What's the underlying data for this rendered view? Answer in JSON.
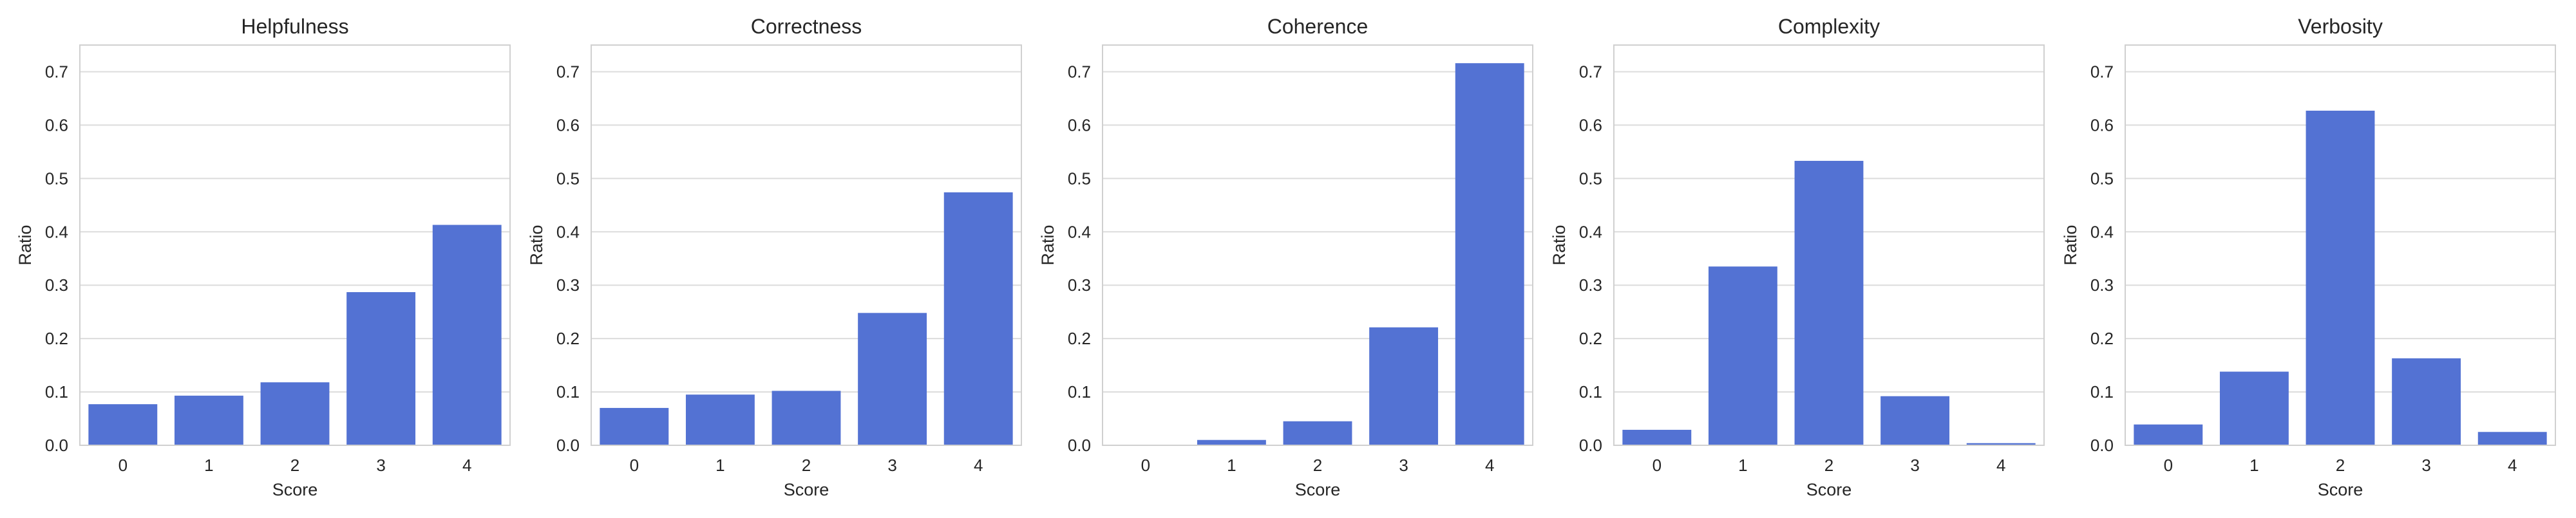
{
  "chart_data": [
    {
      "type": "bar",
      "title": "Helpfulness",
      "xlabel": "Score",
      "ylabel": "Ratio",
      "categories": [
        "0",
        "1",
        "2",
        "3",
        "4"
      ],
      "values": [
        0.077,
        0.093,
        0.118,
        0.287,
        0.413
      ],
      "ylim": [
        0,
        0.75
      ],
      "yticks": [
        "0.0",
        "0.1",
        "0.2",
        "0.3",
        "0.4",
        "0.5",
        "0.6",
        "0.7"
      ],
      "grid": "horizontal",
      "bar_color": "#5372d3"
    },
    {
      "type": "bar",
      "title": "Correctness",
      "xlabel": "Score",
      "ylabel": "Ratio",
      "categories": [
        "0",
        "1",
        "2",
        "3",
        "4"
      ],
      "values": [
        0.07,
        0.095,
        0.102,
        0.248,
        0.474
      ],
      "ylim": [
        0,
        0.75
      ],
      "yticks": [
        "0.0",
        "0.1",
        "0.2",
        "0.3",
        "0.4",
        "0.5",
        "0.6",
        "0.7"
      ],
      "grid": "horizontal",
      "bar_color": "#5372d3"
    },
    {
      "type": "bar",
      "title": "Coherence",
      "xlabel": "Score",
      "ylabel": "Ratio",
      "categories": [
        "0",
        "1",
        "2",
        "3",
        "4"
      ],
      "values": [
        0.001,
        0.01,
        0.045,
        0.221,
        0.716
      ],
      "ylim": [
        0,
        0.75
      ],
      "yticks": [
        "0.0",
        "0.1",
        "0.2",
        "0.3",
        "0.4",
        "0.5",
        "0.6",
        "0.7"
      ],
      "grid": "horizontal",
      "bar_color": "#5372d3"
    },
    {
      "type": "bar",
      "title": "Complexity",
      "xlabel": "Score",
      "ylabel": "Ratio",
      "categories": [
        "0",
        "1",
        "2",
        "3",
        "4"
      ],
      "values": [
        0.029,
        0.335,
        0.533,
        0.092,
        0.004
      ],
      "ylim": [
        0,
        0.75
      ],
      "yticks": [
        "0.0",
        "0.1",
        "0.2",
        "0.3",
        "0.4",
        "0.5",
        "0.6",
        "0.7"
      ],
      "grid": "horizontal",
      "bar_color": "#5372d3"
    },
    {
      "type": "bar",
      "title": "Verbosity",
      "xlabel": "Score",
      "ylabel": "Ratio",
      "categories": [
        "0",
        "1",
        "2",
        "3",
        "4"
      ],
      "values": [
        0.039,
        0.138,
        0.627,
        0.163,
        0.025
      ],
      "ylim": [
        0,
        0.75
      ],
      "yticks": [
        "0.0",
        "0.1",
        "0.2",
        "0.3",
        "0.4",
        "0.5",
        "0.6",
        "0.7"
      ],
      "grid": "horizontal",
      "bar_color": "#5372d3"
    }
  ]
}
